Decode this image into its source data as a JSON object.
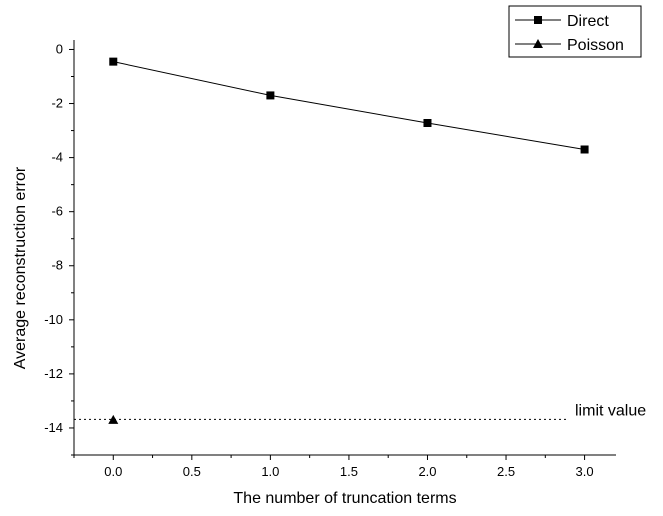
{
  "chart_data": {
    "type": "line",
    "title": "",
    "xlabel": "The number of truncation terms",
    "ylabel": "Average reconstruction error",
    "xlim": [
      -0.25,
      3.2
    ],
    "ylim": [
      -15,
      0.35
    ],
    "x_ticks": [
      0.0,
      0.5,
      1.0,
      1.5,
      2.0,
      2.5,
      3.0
    ],
    "x_tick_labels": [
      "0.0",
      "0.5",
      "1.0",
      "1.5",
      "2.0",
      "2.5",
      "3.0"
    ],
    "y_ticks": [
      0,
      -2,
      -4,
      -6,
      -8,
      -10,
      -12,
      -14
    ],
    "y_tick_labels": [
      "0",
      "-2",
      "-4",
      "-6",
      "-8",
      "-10",
      "-12",
      "-14"
    ],
    "grid": false,
    "legend_position": "top-right",
    "series": [
      {
        "name": "Direct",
        "marker": "square",
        "color": "#000000",
        "x": [
          0.0,
          1.0,
          2.0,
          3.0
        ],
        "y": [
          -0.45,
          -1.7,
          -2.72,
          -3.7
        ]
      },
      {
        "name": "Poisson",
        "marker": "triangle",
        "color": "#000000",
        "x": [
          0.0
        ],
        "y": [
          -13.7
        ]
      }
    ],
    "reference_line": {
      "y": -13.68,
      "style": "dotted",
      "label": "limit value"
    }
  }
}
